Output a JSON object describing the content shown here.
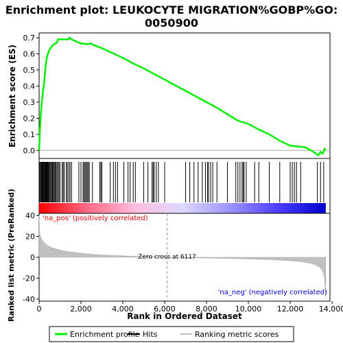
{
  "chart_data": [
    {
      "type": "line",
      "title": "Enrichment plot: LEUKOCYTE MIGRATION%GOBP%GO:\n0050900",
      "ylabel": "Enrichment score (ES)",
      "ylim": [
        -0.05,
        0.73
      ],
      "xlim": [
        0,
        13900
      ],
      "y_ticks": [
        0.0,
        0.1,
        0.2,
        0.3,
        0.4,
        0.5,
        0.6,
        0.7
      ],
      "y_tick_labels": [
        "0.0",
        "0.1",
        "0.2",
        "0.3",
        "0.4",
        "0.5",
        "0.6",
        "0.7"
      ],
      "color": "#00ee00",
      "series": [
        {
          "name": "Enrichment profile",
          "x": [
            0,
            40,
            80,
            130,
            180,
            240,
            300,
            360,
            420,
            480,
            540,
            600,
            660,
            720,
            780,
            850,
            900,
            1000,
            1150,
            1300,
            1400,
            1450,
            1550,
            1800,
            2000,
            2300,
            2450,
            2700,
            3000,
            3500,
            4000,
            4500,
            5000,
            5500,
            6000,
            6500,
            7000,
            7500,
            8000,
            8500,
            9000,
            9500,
            10000,
            10500,
            11000,
            11500,
            12000,
            12300,
            12700,
            13000,
            13350,
            13450,
            13550,
            13650,
            13700
          ],
          "y": [
            0.0,
            0.13,
            0.22,
            0.3,
            0.36,
            0.42,
            0.51,
            0.57,
            0.6,
            0.62,
            0.635,
            0.645,
            0.655,
            0.66,
            0.665,
            0.67,
            0.69,
            0.69,
            0.69,
            0.69,
            0.69,
            0.7,
            0.69,
            0.675,
            0.665,
            0.66,
            0.665,
            0.65,
            0.635,
            0.605,
            0.575,
            0.54,
            0.51,
            0.475,
            0.44,
            0.405,
            0.37,
            0.335,
            0.3,
            0.265,
            0.225,
            0.185,
            0.165,
            0.13,
            0.1,
            0.06,
            0.03,
            0.025,
            0.02,
            0.0,
            -0.03,
            -0.01,
            -0.02,
            0.01,
            0.005
          ]
        }
      ]
    },
    {
      "type": "barcode",
      "hits_x": [
        20,
        60,
        90,
        120,
        150,
        180,
        210,
        240,
        270,
        300,
        330,
        360,
        390,
        420,
        450,
        480,
        520,
        560,
        600,
        640,
        680,
        720,
        760,
        800,
        850,
        900,
        950,
        1000,
        1100,
        1150,
        1200,
        1300,
        1350,
        1420,
        1480,
        1550,
        1900,
        2000,
        2100,
        2150,
        2200,
        2250,
        2300,
        2350,
        2400,
        2550,
        2900,
        2950,
        3000,
        3400,
        3550,
        3650,
        3750,
        4050,
        4250,
        4350,
        4500,
        4600,
        5000,
        5200,
        5400,
        5450,
        5500,
        5600,
        5700,
        6000,
        7000,
        7200,
        7400,
        7600,
        7800,
        7950,
        8050,
        8100,
        8200,
        8300,
        8500,
        9000,
        9400,
        9500,
        9600,
        9700,
        9750,
        9800,
        9900,
        10300,
        10500,
        11000,
        11500,
        12000,
        12100,
        12200,
        12300,
        12500,
        13300,
        13450,
        13600
      ],
      "band_colors": [
        "#ff0000",
        "#ff6a84",
        "#ffbcde",
        "#ddd9ff",
        "#9c92ff",
        "#4d3eff",
        "#0000cc"
      ]
    },
    {
      "type": "area",
      "ylabel": "Ranked list metric (PreRanked)",
      "xlabel": "Rank in Ordered Dataset",
      "ylim": [
        -42,
        42
      ],
      "xlim": [
        0,
        13900
      ],
      "x_ticks": [
        0,
        2000,
        4000,
        6000,
        8000,
        10000,
        12000,
        14000
      ],
      "x_tick_labels": [
        "0",
        "2,000",
        "4,000",
        "6,000",
        "8,000",
        "10,000",
        "12,000",
        "14,000"
      ],
      "y_ticks": [
        -40,
        -20,
        0,
        20,
        40
      ],
      "y_tick_labels": [
        "-40",
        "-20",
        "0",
        "20",
        "40"
      ],
      "zero_cross_rank": 6117,
      "zero_cross_label": "Zero cross at 6117",
      "pos_label": "'na_pos' (positively correlated)",
      "neg_label": "'na_neg' (negatively correlated)",
      "series": [
        {
          "x": [
            0,
            20,
            50,
            100,
            200,
            300,
            500,
            800,
            1200,
            1700,
            2300,
            3000,
            3800,
            4600,
            5400,
            6117,
            7000,
            8000,
            9000,
            10000,
            11000,
            11800,
            12400,
            12900,
            13200,
            13400,
            13550,
            13620,
            13660,
            13700
          ],
          "y": [
            40,
            25,
            21,
            18,
            15,
            13,
            10,
            8,
            6,
            4.5,
            3.2,
            2.2,
            1.5,
            1.0,
            0.5,
            0.0,
            -0.4,
            -0.8,
            -1.2,
            -1.7,
            -2.3,
            -3.0,
            -4.0,
            -5.5,
            -7.0,
            -9.5,
            -13,
            -18,
            -26,
            -39
          ]
        }
      ]
    }
  ],
  "legend": {
    "items": [
      {
        "label": "Enrichment profile",
        "color": "#00ee00"
      },
      {
        "label": "Hits",
        "color": "#000000"
      },
      {
        "label": "Ranking metric scores",
        "color": "#c0c0c0"
      }
    ]
  }
}
